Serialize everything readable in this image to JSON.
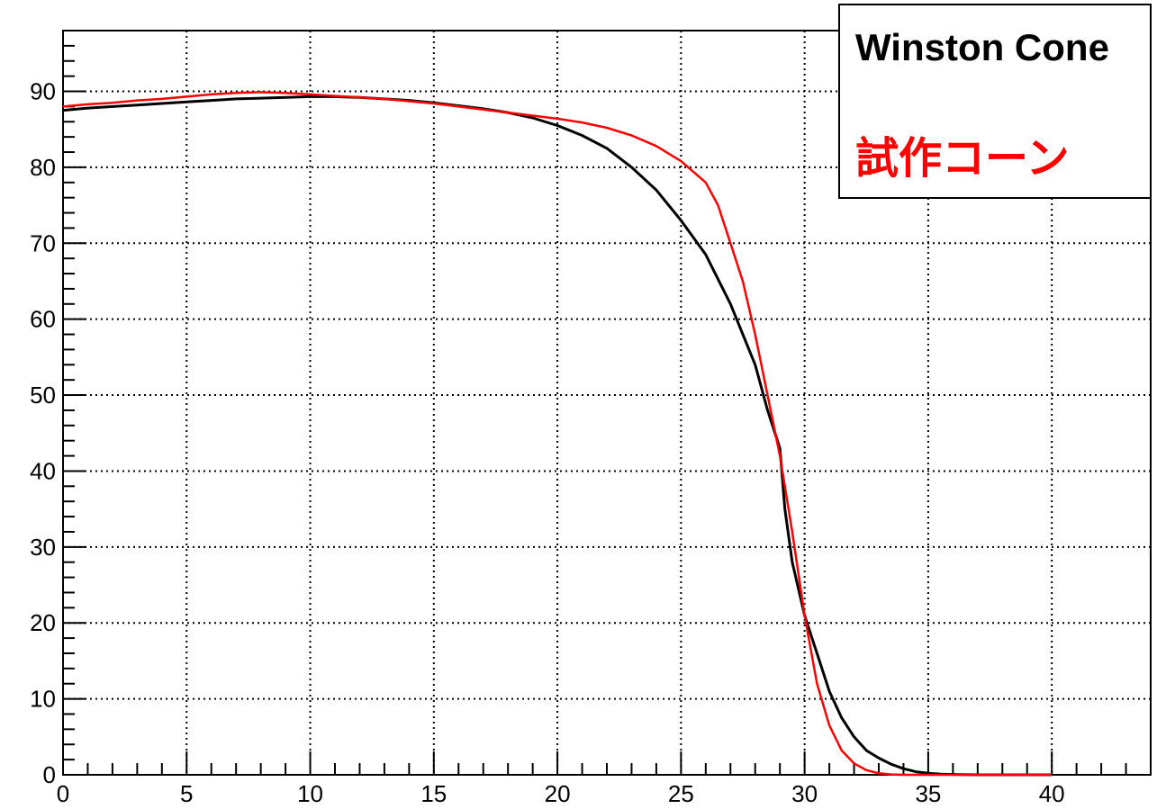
{
  "chart_data": {
    "type": "line",
    "title": "",
    "xlabel": "",
    "ylabel": "",
    "xlim": [
      0,
      44
    ],
    "ylim": [
      0,
      98
    ],
    "x_ticks": [
      0,
      5,
      10,
      15,
      20,
      25,
      30,
      35,
      40
    ],
    "y_ticks": [
      0,
      10,
      20,
      30,
      40,
      50,
      60,
      70,
      80,
      90
    ],
    "grid": true,
    "legend_position": "top-right",
    "series": [
      {
        "name": "Winston Cone",
        "color": "#000000",
        "x": [
          0,
          1,
          2,
          3,
          4,
          5,
          6,
          7,
          8,
          9,
          10,
          11,
          12,
          13,
          14,
          15,
          16,
          17,
          18,
          19,
          20,
          21,
          22,
          23,
          24,
          25,
          26,
          27,
          28,
          28.5,
          29,
          29.2,
          29.5,
          30,
          30.5,
          31,
          31.5,
          32,
          32.5,
          33,
          33.5,
          34,
          34.5,
          35,
          35.5,
          36,
          37,
          38,
          39,
          40
        ],
        "y": [
          87.5,
          87.8,
          88.0,
          88.2,
          88.4,
          88.6,
          88.8,
          89.0,
          89.1,
          89.2,
          89.3,
          89.3,
          89.2,
          89.0,
          88.8,
          88.5,
          88.1,
          87.7,
          87.2,
          86.5,
          85.5,
          84.2,
          82.5,
          80.0,
          77.0,
          73.0,
          68.5,
          62.0,
          54.0,
          48.0,
          43.0,
          35.0,
          28.0,
          21.0,
          16.0,
          11.0,
          7.5,
          5.0,
          3.2,
          2.2,
          1.4,
          0.8,
          0.4,
          0.2,
          0.1,
          0.05,
          0.0,
          0.0,
          0.0,
          0.0
        ]
      },
      {
        "name": "試作コーン",
        "color": "#ff0000",
        "x": [
          0,
          1,
          2,
          3,
          4,
          5,
          6,
          7,
          8,
          9,
          10,
          11,
          12,
          13,
          14,
          15,
          16,
          17,
          18,
          19,
          20,
          21,
          22,
          23,
          24,
          25,
          26,
          26.5,
          27,
          27.5,
          28,
          28.5,
          29,
          29.5,
          30,
          30.5,
          31,
          31.5,
          32,
          32.5,
          33,
          33.5,
          34,
          35,
          36,
          37,
          38,
          39,
          40
        ],
        "y": [
          88.0,
          88.3,
          88.5,
          88.8,
          89.0,
          89.3,
          89.6,
          89.8,
          89.9,
          89.8,
          89.6,
          89.4,
          89.2,
          89.0,
          88.7,
          88.4,
          88.0,
          87.6,
          87.2,
          86.8,
          86.4,
          85.9,
          85.2,
          84.2,
          82.8,
          80.8,
          78.0,
          75.0,
          70.0,
          65.0,
          58.0,
          50.0,
          42.0,
          32.0,
          21.0,
          12.0,
          6.5,
          3.2,
          1.5,
          0.6,
          0.2,
          0.05,
          0.0,
          0.0,
          0.0,
          0.0,
          0.0,
          0.0,
          0.0
        ]
      }
    ],
    "legend": {
      "entries": [
        {
          "label": "Winston Cone",
          "color": "#000000"
        },
        {
          "label": "試作コーン",
          "color": "#ff0000"
        }
      ]
    }
  }
}
